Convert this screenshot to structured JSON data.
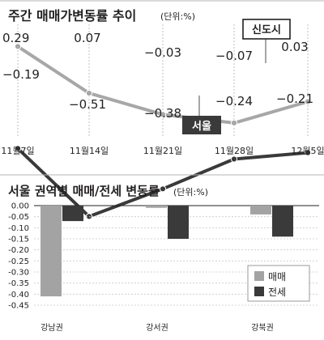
{
  "colors": {
    "background": "#ffffff",
    "ink": "#231f20",
    "panel_line": "#b5b5b5",
    "top_grid": "#bfbfbf",
    "seoul": "#3a3a3a",
    "new_town": "#a7a7a7",
    "sale_bar": "#a3a3a3",
    "lease_bar": "#3a3a3a",
    "bottom_grid": "#c9c9c9"
  },
  "chart_data": [
    {
      "type": "line",
      "title": "주간 매매가변동률 추이",
      "unit": "(단위:%)",
      "categories": [
        "11월7일",
        "11월14일",
        "11월21일",
        "11월28일",
        "12월5일"
      ],
      "series": [
        {
          "name": "신도시",
          "values": [
            0.29,
            0.07,
            -0.03,
            -0.07,
            0.03
          ],
          "labels": [
            "0.29",
            "0.07",
            "−0.03",
            "−0.07",
            "0.03"
          ],
          "color": "#a7a7a7"
        },
        {
          "name": "서울",
          "values": [
            -0.19,
            -0.51,
            -0.38,
            -0.24,
            -0.21
          ],
          "labels": [
            "−0.19",
            "−0.51",
            "−0.38",
            "−0.24",
            "−0.21"
          ],
          "color": "#3a3a3a"
        }
      ],
      "grid": "vertical dashed lines at each date",
      "legend": "labels placed next to lines"
    },
    {
      "type": "bar",
      "title": "서울 권역별 매매/전세 변동률",
      "unit": "(단위:%)",
      "categories": [
        "강남권",
        "강서권",
        "강북권"
      ],
      "series": [
        {
          "name": "매매",
          "values": [
            -0.41,
            -0.01,
            -0.04
          ],
          "color": "#a3a3a3"
        },
        {
          "name": "전세",
          "values": [
            -0.07,
            -0.15,
            -0.14
          ],
          "color": "#3a3a3a"
        }
      ],
      "ylim": [
        -0.45,
        0.0
      ],
      "yticks": [
        "0.00",
        "-0.05",
        "-0.10",
        "-0.15",
        "-0.20",
        "-0.25",
        "-0.30",
        "-0.35",
        "-0.40",
        "-0.45"
      ],
      "grid": "horizontal dashed lines",
      "legend": "bottom-right"
    }
  ]
}
